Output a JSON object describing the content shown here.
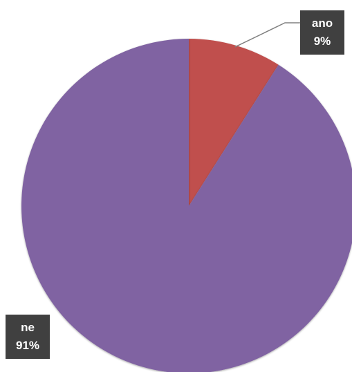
{
  "chart_data": {
    "type": "pie",
    "title": "",
    "slices": [
      {
        "label": "ano",
        "value": 9,
        "percent_label": "9%",
        "color": "#C0504D"
      },
      {
        "label": "ne",
        "value": 91,
        "percent_label": "91%",
        "color": "#8064A2"
      }
    ],
    "start_angle_deg": 0,
    "direction": "clockwise",
    "data_label_style": {
      "background": "#404040",
      "text_color": "#FFFFFF"
    },
    "leader_line_color": "#808080",
    "legend": "none"
  }
}
